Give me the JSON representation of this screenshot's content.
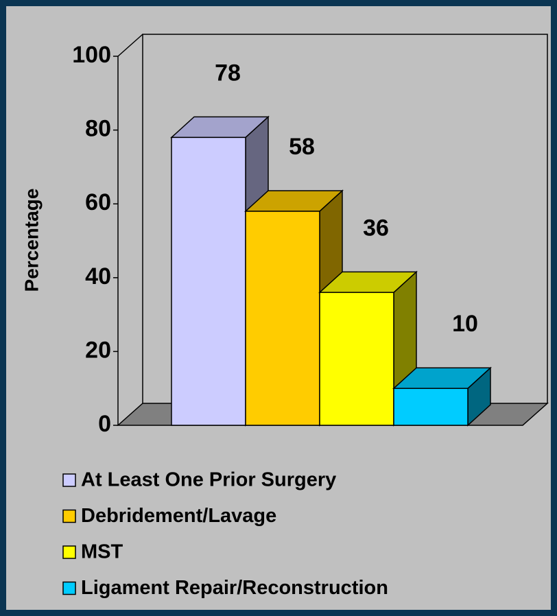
{
  "chart_data": {
    "type": "bar3d",
    "y_label": "Percentage",
    "categories": [
      "At Least One Prior Surgery",
      "Debridement/Lavage",
      "MST",
      "Ligament Repair/Reconstruction"
    ],
    "values": [
      78,
      58,
      36,
      10
    ],
    "colors": [
      "#ccccff",
      "#ffcc00",
      "#ffff00",
      "#00ccff"
    ],
    "ylim": [
      0,
      100
    ],
    "yticks": [
      0,
      20,
      40,
      60,
      80,
      100
    ],
    "grid": false,
    "legend": "bottom"
  }
}
